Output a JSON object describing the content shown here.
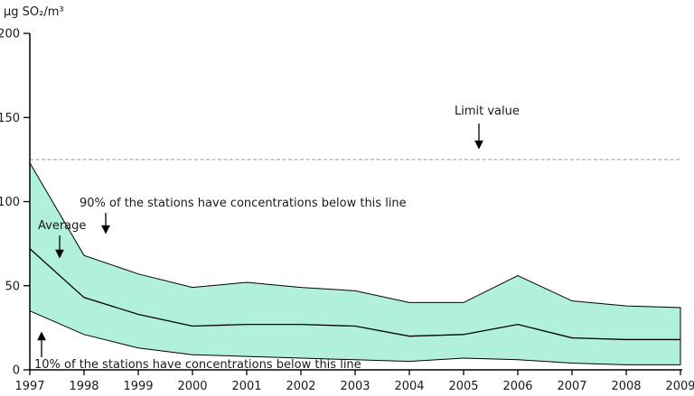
{
  "unit_label": "µg SO₂/m³",
  "annotations": {
    "limit": "Limit value",
    "p90": "90% of the stations have concentrations below this line",
    "average": "Average",
    "p10": "10% of the stations have concentrations below this line"
  },
  "colors": {
    "band_fill": "#b0f0dc",
    "line": "#000000",
    "limit_line": "#999999",
    "text": "#1a1a1a"
  },
  "chart_data": {
    "type": "area",
    "title": "",
    "ylabel": "µg SO₂/m³",
    "xlabel": "",
    "x": [
      1997,
      1998,
      1999,
      2000,
      2001,
      2002,
      2003,
      2004,
      2005,
      2006,
      2007,
      2008,
      2009
    ],
    "series": [
      {
        "name": "90% of the stations have concentrations below this line",
        "values": [
          123,
          68,
          57,
          49,
          52,
          49,
          47,
          40,
          40,
          56,
          41,
          38,
          37
        ]
      },
      {
        "name": "Average",
        "values": [
          72,
          43,
          33,
          26,
          27,
          27,
          26,
          20,
          21,
          27,
          19,
          18,
          18
        ]
      },
      {
        "name": "10% of the stations have concentrations below this line",
        "values": [
          35,
          21,
          13,
          9,
          8,
          7,
          6,
          5,
          7,
          6,
          4,
          3,
          3
        ]
      }
    ],
    "limit_value": 125,
    "ylim": [
      0,
      200
    ],
    "yticks": [
      0,
      50,
      100,
      150,
      200
    ],
    "grid": false,
    "legend_position": "none"
  }
}
